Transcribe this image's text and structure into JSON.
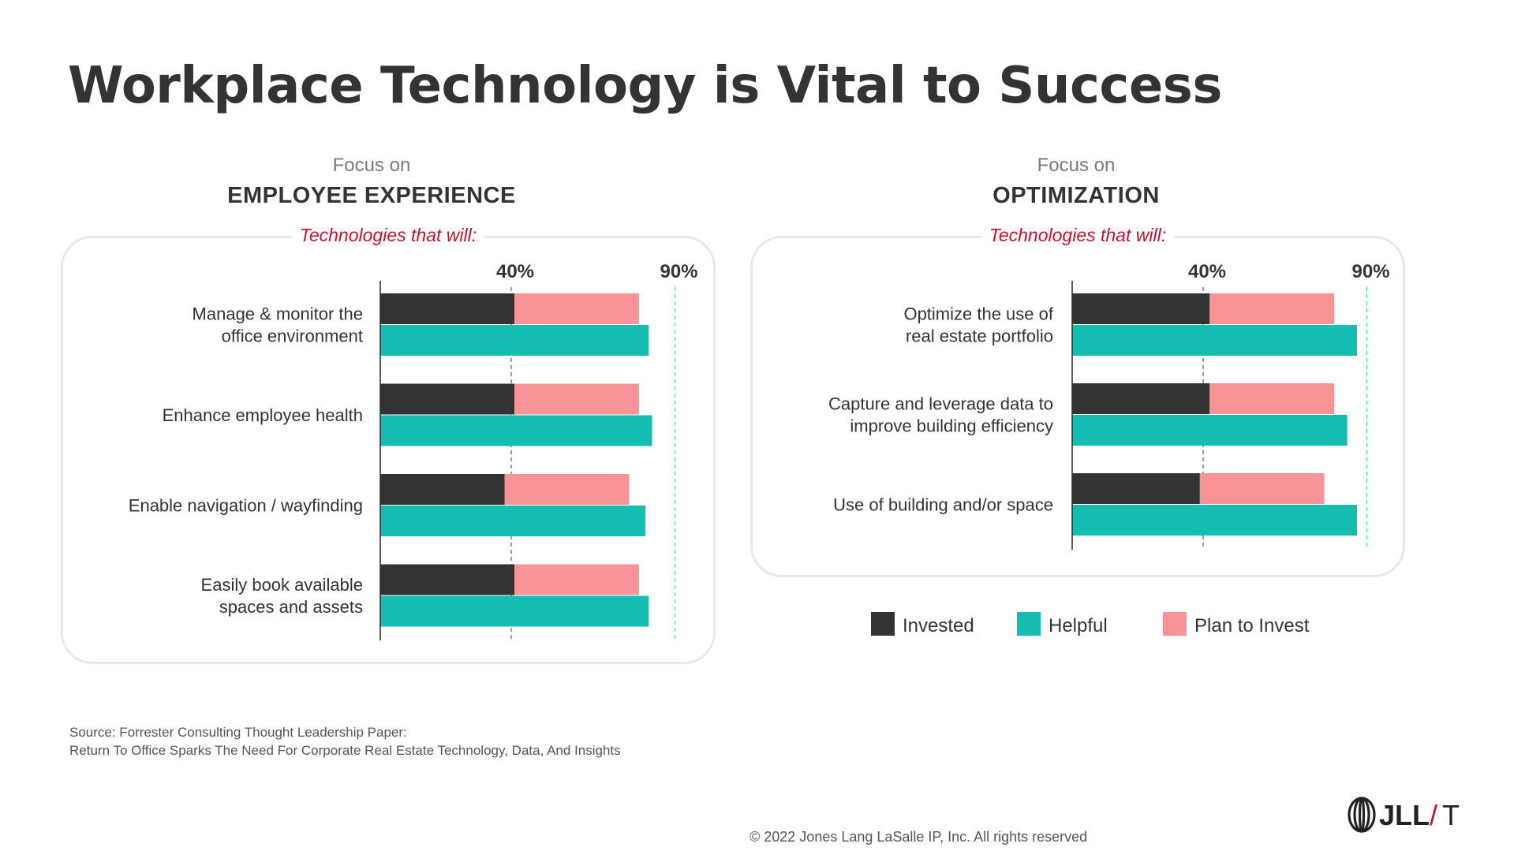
{
  "title": "Workplace Technology is Vital to Success",
  "panels": [
    {
      "focus": "Focus on",
      "name": "EMPLOYEE EXPERIENCE",
      "box_label": "Technologies that will:"
    },
    {
      "focus": "Focus on",
      "name": "OPTIMIZATION",
      "box_label": "Technologies that will:"
    }
  ],
  "chart_data": [
    {
      "type": "bar",
      "orientation": "horizontal",
      "title": "EMPLOYEE EXPERIENCE",
      "categories": [
        [
          "Manage & monitor the",
          "office environment"
        ],
        [
          "Enhance employee health"
        ],
        [
          "Enable navigation / wayfinding"
        ],
        [
          "Easily book available",
          "spaces and assets"
        ]
      ],
      "reference_lines": [
        {
          "value": 40,
          "label": "40%"
        },
        {
          "value": 90,
          "label": "90%"
        }
      ],
      "xlim": [
        0,
        100
      ],
      "series": [
        {
          "name": "Invested",
          "values": [
            41,
            41,
            38,
            41
          ],
          "stacked_with": "Plan to Invest"
        },
        {
          "name": "Plan to Invest",
          "values": [
            38,
            38,
            38,
            38
          ],
          "stacked_on": "Invested"
        },
        {
          "name": "Helpful",
          "values": [
            82,
            83,
            81,
            82
          ]
        }
      ]
    },
    {
      "type": "bar",
      "orientation": "horizontal",
      "title": "OPTIMIZATION",
      "categories": [
        [
          "Optimize the use of",
          "real estate portfolio"
        ],
        [
          "Capture and leverage data to",
          "improve building efficiency"
        ],
        [
          "Use of building and/or space"
        ]
      ],
      "reference_lines": [
        {
          "value": 40,
          "label": "40%"
        },
        {
          "value": 90,
          "label": "90%"
        }
      ],
      "xlim": [
        0,
        100
      ],
      "series": [
        {
          "name": "Invested",
          "values": [
            42,
            42,
            39
          ],
          "stacked_with": "Plan to Invest"
        },
        {
          "name": "Plan to Invest",
          "values": [
            38,
            38,
            38
          ],
          "stacked_on": "Invested"
        },
        {
          "name": "Helpful",
          "values": [
            87,
            84,
            87
          ]
        }
      ]
    }
  ],
  "colors": {
    "Invested": "#333333",
    "Helpful": "#14bdb0",
    "Plan to Invest": "#f89397",
    "ref40": "#666666",
    "ref90": "#5ad1c8"
  },
  "legend": [
    {
      "label": "Invested",
      "color": "#333333"
    },
    {
      "label": "Helpful",
      "color": "#14bdb0"
    },
    {
      "label": "Plan to Invest",
      "color": "#f89397"
    }
  ],
  "source": {
    "line1": "Source: Forrester Consulting Thought Leadership Paper:",
    "line2": "Return To Office Sparks The Need For Corporate Real Estate Technology, Data, And Insights"
  },
  "copyright": "© 2022 Jones Lang LaSalle IP, Inc. All rights reserved",
  "logo": {
    "text": "JLL",
    "slash": "/",
    "suffix": "T",
    "slash_color": "#c8102e"
  }
}
